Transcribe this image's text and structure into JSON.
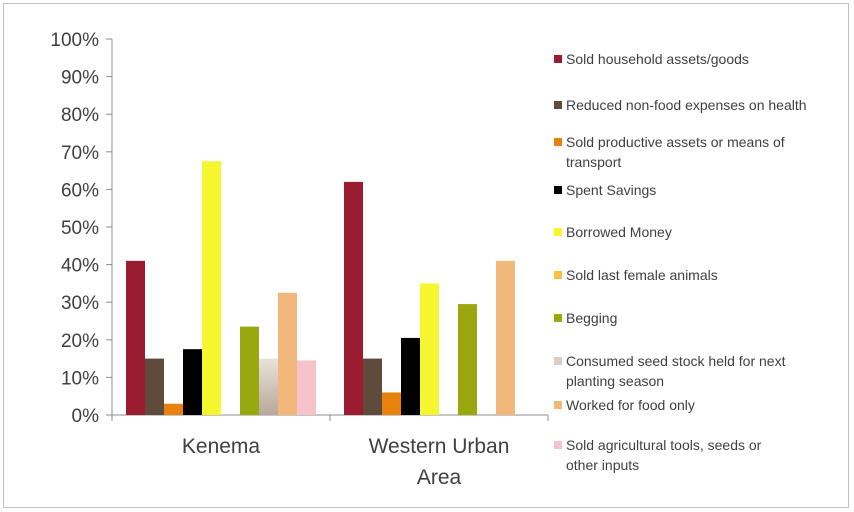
{
  "chart_data": {
    "type": "bar",
    "title": "",
    "xlabel": "",
    "ylabel": "",
    "ylim": [
      0,
      100
    ],
    "y_ticks": [
      "0%",
      "10%",
      "20%",
      "30%",
      "40%",
      "50%",
      "60%",
      "70%",
      "80%",
      "90%",
      "100%"
    ],
    "grid": false,
    "legend_position": "right",
    "categories": [
      "Kenema",
      "Western Urban Area"
    ],
    "series": [
      {
        "name": "Sold household assets/goods",
        "color": "#9b1b30",
        "values": [
          41,
          62
        ]
      },
      {
        "name": "Reduced non-food expenses on health",
        "color": "#5e4b3c",
        "values": [
          15,
          15
        ]
      },
      {
        "name": "Sold productive assets or means of transport",
        "color": "#e8820c",
        "values": [
          3,
          6
        ]
      },
      {
        "name": "Spent Savings",
        "color": "#000000",
        "values": [
          17.5,
          20.5
        ]
      },
      {
        "name": "Borrowed Money",
        "color": "#f6f630",
        "values": [
          67.5,
          35
        ]
      },
      {
        "name": "Sold last female animals",
        "color": "#f5c242",
        "values": [
          0,
          0
        ]
      },
      {
        "name": "Begging",
        "color": "#99a80f",
        "values": [
          23.5,
          29.5
        ]
      },
      {
        "name": "Consumed seed stock held for next planting season",
        "color": "#d8d0c8",
        "values": [
          15,
          0
        ]
      },
      {
        "name": "Worked for food only",
        "color": "#f2b77a",
        "values": [
          32.5,
          41
        ]
      },
      {
        "name": "Sold agricultural tools, seeds or other inputs",
        "color": "#f6c2cc",
        "values": [
          14.5,
          0
        ]
      }
    ]
  }
}
